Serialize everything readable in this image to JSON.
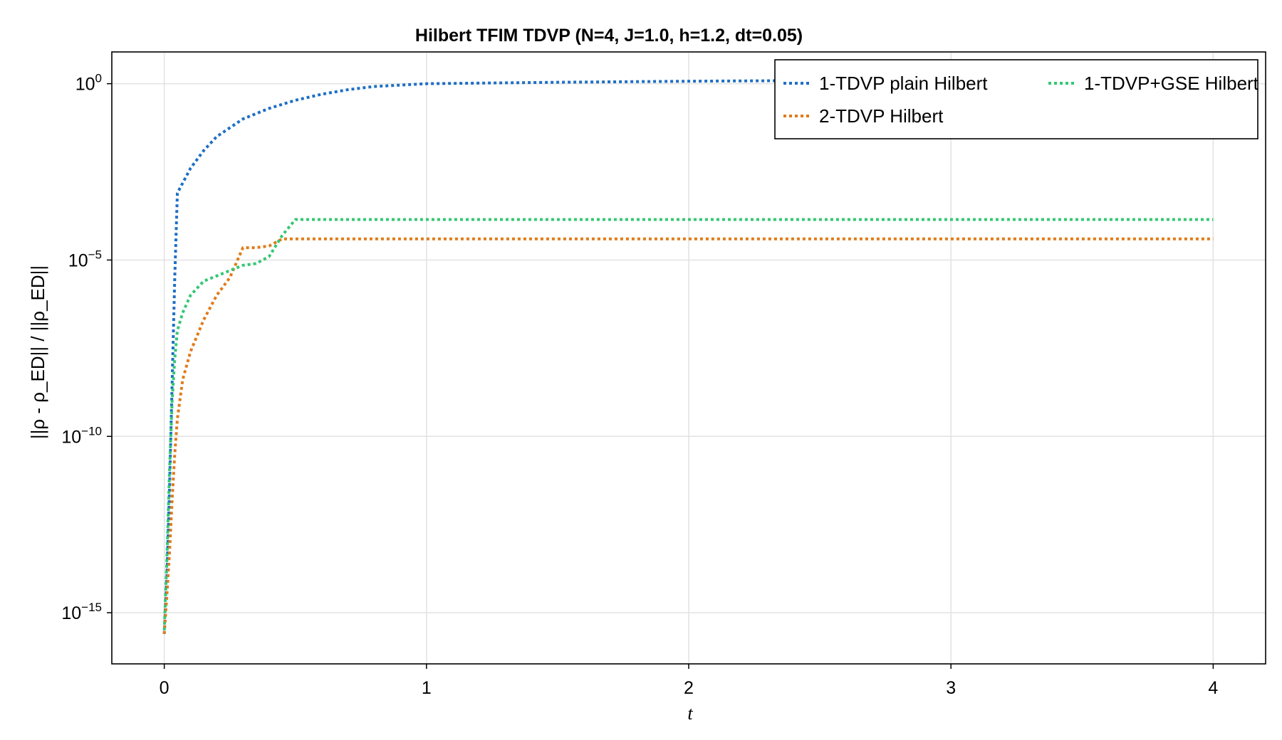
{
  "chart_data": {
    "type": "line",
    "title": "Hilbert TFIM TDVP (N=4, J=1.0, h=1.2, dt=0.05)",
    "xlabel": "t",
    "ylabel": "||ρ - ρ_ED|| / ||ρ_ED||",
    "xlim": [
      -0.2,
      4.2
    ],
    "ylim_log10": [
      -16.45,
      0.9
    ],
    "yscale": "log",
    "xticks": [
      0,
      1,
      2,
      3,
      4
    ],
    "xtick_labels": [
      "0",
      "1",
      "2",
      "3",
      "4"
    ],
    "yticks_log10": [
      0,
      -5,
      -10,
      -15
    ],
    "ytick_labels": [
      {
        "base": "10",
        "exp": "0"
      },
      {
        "base": "10",
        "exp": "−5"
      },
      {
        "base": "10",
        "exp": "−10"
      },
      {
        "base": "10",
        "exp": "−15"
      }
    ],
    "grid": true,
    "legend_position": "top-right",
    "legend_columns": 2,
    "series": [
      {
        "name": "1-TDVP plain Hilbert",
        "color": "#1f6fc4",
        "style": "dotted",
        "x": [
          0,
          0.01,
          0.02,
          0.03,
          0.04,
          0.05,
          0.1,
          0.15,
          0.2,
          0.3,
          0.4,
          0.5,
          0.6,
          0.7,
          0.8,
          1.0,
          1.5,
          2.0,
          2.5,
          3.0,
          3.5,
          4.0
        ],
        "y_log10": [
          -15.6,
          -14.0,
          -11.5,
          -8.5,
          -5.5,
          -3.1,
          -2.4,
          -1.9,
          -1.5,
          -1.0,
          -0.7,
          -0.47,
          -0.3,
          -0.17,
          -0.08,
          0.0,
          0.04,
          0.07,
          0.09,
          0.1,
          0.11,
          0.12
        ]
      },
      {
        "name": "2-TDVP Hilbert",
        "color": "#e07b1a",
        "style": "dotted",
        "x": [
          0,
          0.01,
          0.02,
          0.03,
          0.04,
          0.05,
          0.07,
          0.1,
          0.15,
          0.2,
          0.25,
          0.3,
          0.35,
          0.4,
          0.45,
          0.5,
          1.0,
          2.0,
          3.0,
          4.0
        ],
        "y_log10": [
          -15.6,
          -14.5,
          -13.3,
          -11.8,
          -10.5,
          -9.5,
          -8.4,
          -7.6,
          -6.7,
          -6.0,
          -5.5,
          -4.65,
          -4.65,
          -4.6,
          -4.4,
          -4.4,
          -4.4,
          -4.4,
          -4.4,
          -4.4
        ]
      },
      {
        "name": "1-TDVP+GSE Hilbert",
        "color": "#34c774",
        "style": "dotted",
        "x": [
          0,
          0.01,
          0.02,
          0.03,
          0.04,
          0.05,
          0.07,
          0.1,
          0.15,
          0.2,
          0.25,
          0.3,
          0.35,
          0.4,
          0.45,
          0.5,
          1.0,
          2.0,
          3.0,
          4.0
        ],
        "y_log10": [
          -15.5,
          -13.5,
          -11.0,
          -9.0,
          -7.8,
          -7.0,
          -6.5,
          -6.0,
          -5.6,
          -5.45,
          -5.3,
          -5.15,
          -5.1,
          -4.9,
          -4.3,
          -3.85,
          -3.85,
          -3.85,
          -3.85,
          -3.85
        ]
      }
    ]
  }
}
